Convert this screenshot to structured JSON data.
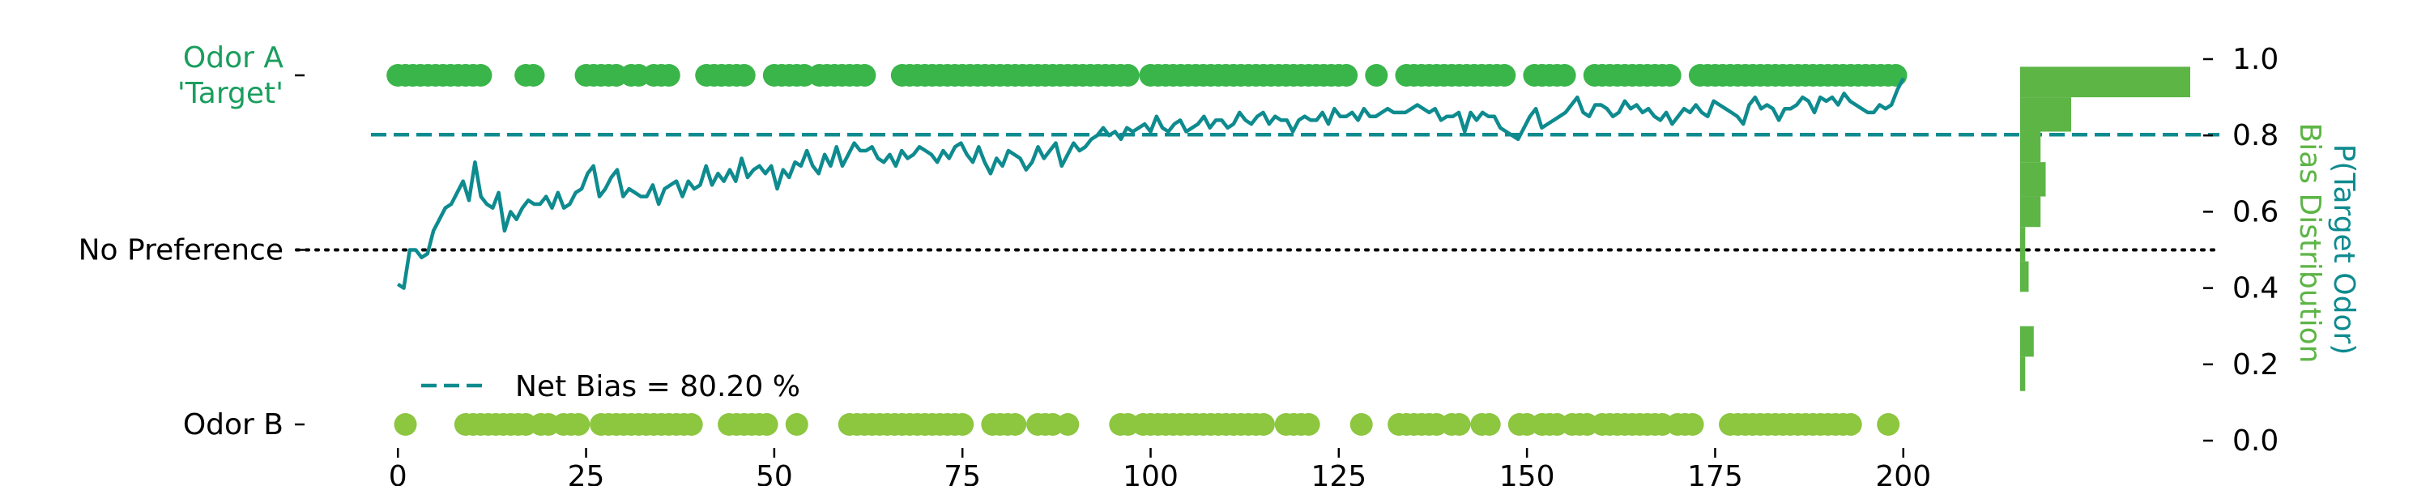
{
  "chart_data": {
    "type": "scatter",
    "y_axis_left": {
      "ticks": [
        {
          "value": 1.0,
          "label": "Odor A\n'Target'",
          "color": "#1a9e5e"
        },
        {
          "value": 0.5,
          "label": "No Preference",
          "color": "#000000"
        },
        {
          "value": 0.0,
          "label": "Odor B",
          "color": "#000000"
        }
      ]
    },
    "x_axis": {
      "ticks": [
        0,
        25,
        50,
        75,
        100,
        125,
        150,
        175,
        200
      ],
      "xlim": [
        -2.5,
        202.5
      ]
    },
    "y_axis_right": {
      "label_1": "P(Target Odor)",
      "label_1_color": "#0e8b8f",
      "label_2": "Bias Distribution",
      "label_2_color": "#5db546",
      "ticks": [
        "0.0",
        "0.2",
        "0.4",
        "0.6",
        "0.8",
        "1.0"
      ],
      "tick_values": [
        0,
        0.2,
        0.4,
        0.6,
        0.8,
        1.0
      ],
      "ylim": [
        0,
        1
      ]
    },
    "net_bias": {
      "value": 0.802,
      "label": "Net Bias = 80.20 %",
      "color": "#0e8b8f"
    },
    "no_preference_level": 0.5,
    "series": [
      {
        "kind": "choices-odor-a",
        "color": "#3ab54a",
        "trials": [
          0,
          1,
          2,
          3,
          4,
          5,
          6,
          7,
          8,
          9,
          10,
          11,
          17,
          18,
          25,
          26,
          27,
          28,
          29,
          31,
          32,
          34,
          35,
          36,
          41,
          42,
          43,
          44,
          45,
          46,
          50,
          51,
          52,
          53,
          54,
          56,
          57,
          58,
          59,
          60,
          61,
          62,
          67,
          68,
          69,
          70,
          71,
          72,
          73,
          74,
          75,
          76,
          77,
          78,
          79,
          80,
          81,
          82,
          83,
          84,
          85,
          86,
          87,
          88,
          89,
          90,
          91,
          92,
          93,
          94,
          95,
          96,
          97,
          100,
          101,
          102,
          103,
          104,
          105,
          106,
          107,
          108,
          109,
          110,
          111,
          112,
          113,
          114,
          115,
          116,
          117,
          118,
          119,
          120,
          121,
          122,
          123,
          124,
          125,
          126,
          130,
          134,
          135,
          136,
          137,
          138,
          139,
          140,
          141,
          142,
          143,
          144,
          145,
          146,
          147,
          151,
          152,
          153,
          154,
          155,
          159,
          160,
          161,
          162,
          163,
          164,
          165,
          166,
          167,
          168,
          169,
          173,
          174,
          175,
          176,
          177,
          178,
          179,
          180,
          181,
          182,
          183,
          184,
          185,
          186,
          187,
          188,
          189,
          190,
          191,
          192,
          193,
          194,
          195,
          196,
          197,
          198,
          199
        ]
      },
      {
        "kind": "choices-odor-b",
        "color": "#8dc63f",
        "trials": [
          1,
          9,
          10,
          11,
          12,
          13,
          14,
          15,
          16,
          17,
          19,
          20,
          22,
          23,
          24,
          27,
          28,
          29,
          30,
          31,
          32,
          33,
          34,
          35,
          36,
          37,
          38,
          39,
          44,
          45,
          46,
          47,
          48,
          49,
          53,
          60,
          61,
          62,
          63,
          64,
          65,
          66,
          67,
          68,
          69,
          70,
          71,
          72,
          73,
          74,
          75,
          79,
          80,
          81,
          82,
          85,
          86,
          87,
          89,
          96,
          97,
          99,
          100,
          101,
          102,
          103,
          104,
          105,
          106,
          107,
          108,
          109,
          110,
          111,
          112,
          113,
          114,
          115,
          118,
          119,
          120,
          121,
          128,
          133,
          134,
          135,
          136,
          137,
          138,
          140,
          141,
          144,
          145,
          149,
          150,
          152,
          153,
          154,
          156,
          157,
          158,
          160,
          161,
          162,
          163,
          164,
          165,
          166,
          167,
          168,
          170,
          171,
          172,
          177,
          178,
          179,
          180,
          181,
          182,
          183,
          184,
          185,
          186,
          187,
          188,
          189,
          190,
          191,
          192,
          193,
          198
        ]
      },
      {
        "kind": "p-target-line",
        "color": "#0e8b8f",
        "values": [
          0.41,
          0.4,
          0.5,
          0.5,
          0.48,
          0.49,
          0.55,
          0.58,
          0.61,
          0.62,
          0.65,
          0.68,
          0.63,
          0.73,
          0.64,
          0.62,
          0.61,
          0.65,
          0.55,
          0.6,
          0.58,
          0.61,
          0.63,
          0.62,
          0.62,
          0.64,
          0.61,
          0.65,
          0.61,
          0.62,
          0.65,
          0.66,
          0.7,
          0.72,
          0.64,
          0.66,
          0.69,
          0.71,
          0.64,
          0.66,
          0.65,
          0.64,
          0.64,
          0.67,
          0.62,
          0.66,
          0.67,
          0.68,
          0.64,
          0.68,
          0.66,
          0.67,
          0.72,
          0.67,
          0.7,
          0.68,
          0.71,
          0.68,
          0.74,
          0.69,
          0.71,
          0.72,
          0.7,
          0.72,
          0.66,
          0.71,
          0.69,
          0.73,
          0.72,
          0.76,
          0.72,
          0.7,
          0.75,
          0.72,
          0.77,
          0.72,
          0.75,
          0.78,
          0.76,
          0.76,
          0.77,
          0.74,
          0.73,
          0.75,
          0.72,
          0.76,
          0.74,
          0.75,
          0.77,
          0.76,
          0.75,
          0.73,
          0.76,
          0.74,
          0.77,
          0.78,
          0.75,
          0.73,
          0.77,
          0.73,
          0.7,
          0.74,
          0.72,
          0.76,
          0.75,
          0.74,
          0.71,
          0.73,
          0.77,
          0.74,
          0.76,
          0.78,
          0.72,
          0.75,
          0.78,
          0.76,
          0.77,
          0.79,
          0.8,
          0.82,
          0.8,
          0.81,
          0.79,
          0.82,
          0.81,
          0.82,
          0.83,
          0.81,
          0.85,
          0.82,
          0.81,
          0.83,
          0.84,
          0.81,
          0.82,
          0.83,
          0.85,
          0.82,
          0.84,
          0.84,
          0.82,
          0.83,
          0.86,
          0.84,
          0.83,
          0.85,
          0.86,
          0.83,
          0.85,
          0.84,
          0.84,
          0.81,
          0.84,
          0.85,
          0.84,
          0.84,
          0.86,
          0.83,
          0.87,
          0.85,
          0.85,
          0.86,
          0.84,
          0.87,
          0.85,
          0.85,
          0.86,
          0.87,
          0.86,
          0.86,
          0.86,
          0.87,
          0.88,
          0.87,
          0.86,
          0.87,
          0.84,
          0.85,
          0.85,
          0.86,
          0.81,
          0.86,
          0.84,
          0.86,
          0.85,
          0.85,
          0.82,
          0.81,
          0.8,
          0.79,
          0.82,
          0.85,
          0.87,
          0.82,
          0.83,
          0.84,
          0.85,
          0.86,
          0.88,
          0.9,
          0.86,
          0.85,
          0.88,
          0.88,
          0.87,
          0.85,
          0.86,
          0.89,
          0.87,
          0.88,
          0.86,
          0.87,
          0.85,
          0.84,
          0.86,
          0.83,
          0.85,
          0.87,
          0.86,
          0.88,
          0.86,
          0.85,
          0.89,
          0.88,
          0.87,
          0.86,
          0.85,
          0.83,
          0.88,
          0.9,
          0.87,
          0.88,
          0.87,
          0.84,
          0.87,
          0.87,
          0.88,
          0.9,
          0.89,
          0.86,
          0.9,
          0.89,
          0.9,
          0.88,
          0.91,
          0.89,
          0.88,
          0.87,
          0.86,
          0.86,
          0.88,
          0.87,
          0.88,
          0.92,
          0.95
        ]
      }
    ],
    "bias_distribution": {
      "color": "#5db546",
      "bins": [
        {
          "y0": 0.13,
          "y1": 0.22,
          "count": 0.03
        },
        {
          "y0": 0.22,
          "y1": 0.3,
          "count": 0.08
        },
        {
          "y0": 0.39,
          "y1": 0.47,
          "count": 0.05
        },
        {
          "y0": 0.47,
          "y1": 0.56,
          "count": 0.03
        },
        {
          "y0": 0.56,
          "y1": 0.64,
          "count": 0.12
        },
        {
          "y0": 0.64,
          "y1": 0.73,
          "count": 0.15
        },
        {
          "y0": 0.73,
          "y1": 0.81,
          "count": 0.12
        },
        {
          "y0": 0.81,
          "y1": 0.9,
          "count": 0.3
        },
        {
          "y0": 0.9,
          "y1": 0.98,
          "count": 1.0
        }
      ]
    }
  }
}
